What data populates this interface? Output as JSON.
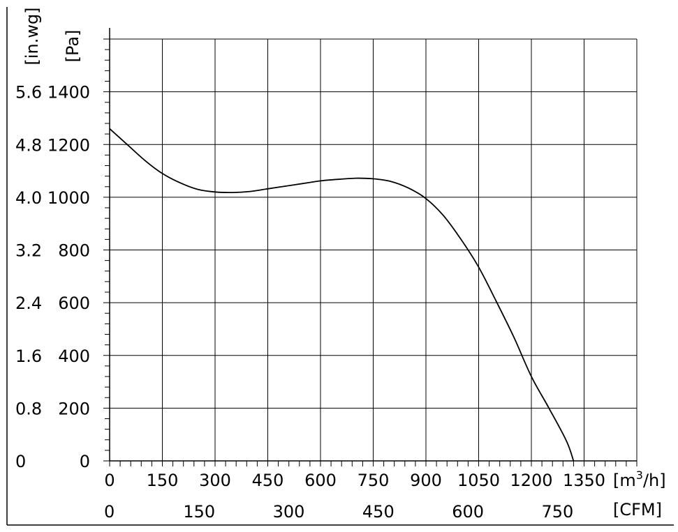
{
  "chart_data": {
    "type": "line",
    "title": "",
    "x_primary": {
      "unit_label": "[m³/h]",
      "unit_base": "[m",
      "unit_sup": "3",
      "unit_tail": "/h]",
      "range": [
        0,
        1500
      ],
      "ticks": [
        0,
        150,
        300,
        450,
        600,
        750,
        900,
        1050,
        1200,
        1350
      ],
      "tick_labels": [
        "0",
        "150",
        "300",
        "450",
        "600",
        "750",
        "900",
        "1050",
        "1200",
        "1350"
      ]
    },
    "x_secondary": {
      "unit_label": "[CFM]",
      "ticks": [
        0,
        150,
        300,
        450,
        600,
        750
      ],
      "tick_labels": [
        "0",
        "150",
        "300",
        "450",
        "600",
        "750"
      ]
    },
    "y_primary": {
      "unit_label": "[Pa]",
      "range": [
        0,
        1600
      ],
      "ticks": [
        0,
        200,
        400,
        600,
        800,
        1000,
        1200,
        1400
      ],
      "tick_labels": [
        "0",
        "200",
        "400",
        "600",
        "800",
        "1000",
        "1200",
        "1400"
      ]
    },
    "y_secondary": {
      "unit_label": "[in.wg]",
      "tick_labels": [
        "0",
        "0.8",
        "1.6",
        "2.4",
        "3.2",
        "4.0",
        "4.8",
        "5.6"
      ]
    },
    "grid": true,
    "series": [
      {
        "x": [
          0,
          50,
          100,
          150,
          200,
          250,
          300,
          350,
          400,
          450,
          500,
          550,
          600,
          650,
          700,
          750,
          800,
          850,
          900,
          950,
          1000,
          1050,
          1100,
          1150,
          1200,
          1250,
          1300,
          1320
        ],
        "y": [
          1260,
          1200,
          1140,
          1090,
          1055,
          1030,
          1020,
          1018,
          1022,
          1032,
          1042,
          1052,
          1062,
          1068,
          1072,
          1070,
          1060,
          1035,
          995,
          930,
          840,
          735,
          605,
          470,
          320,
          200,
          75,
          0
        ]
      }
    ]
  }
}
